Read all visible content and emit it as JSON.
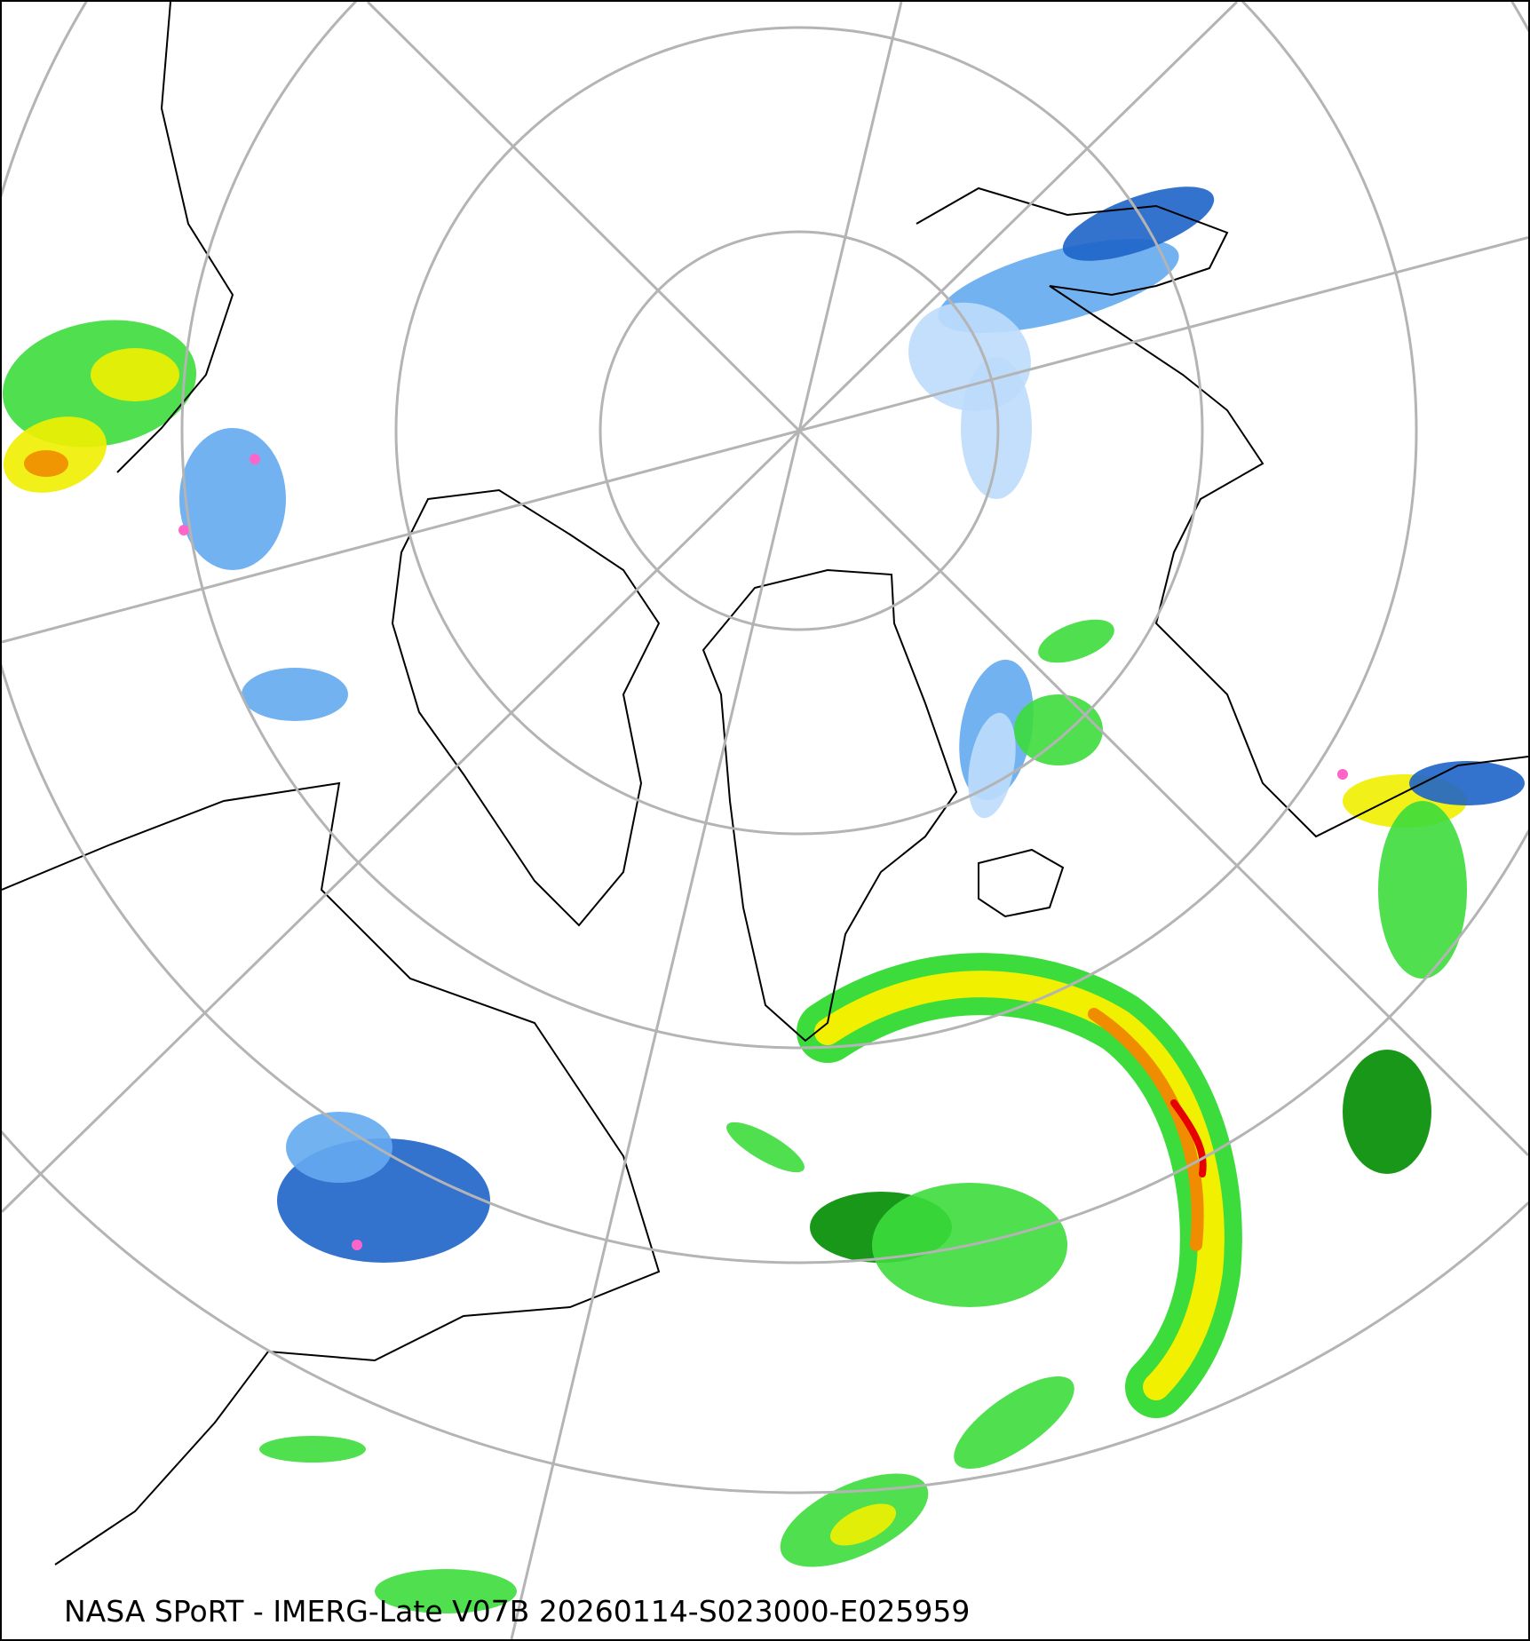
{
  "caption": "NASA SPoRT - IMERG-Late V07B 20260114-S023000-E025959",
  "projection": "north-polar-stereographic",
  "colors": {
    "graticule": "#b4b4b4",
    "coastline": "#000000",
    "snow_light": "#bcdcfc",
    "snow_mid": "#64aaf0",
    "snow_heavy": "#1e64c8",
    "rain_light": "#008c00",
    "rain_mid": "#3cdc3c",
    "rain_moderate": "#f0f000",
    "rain_heavy": "#f08c00",
    "rain_extreme": "#e60000",
    "mix": "#ff64c8"
  }
}
